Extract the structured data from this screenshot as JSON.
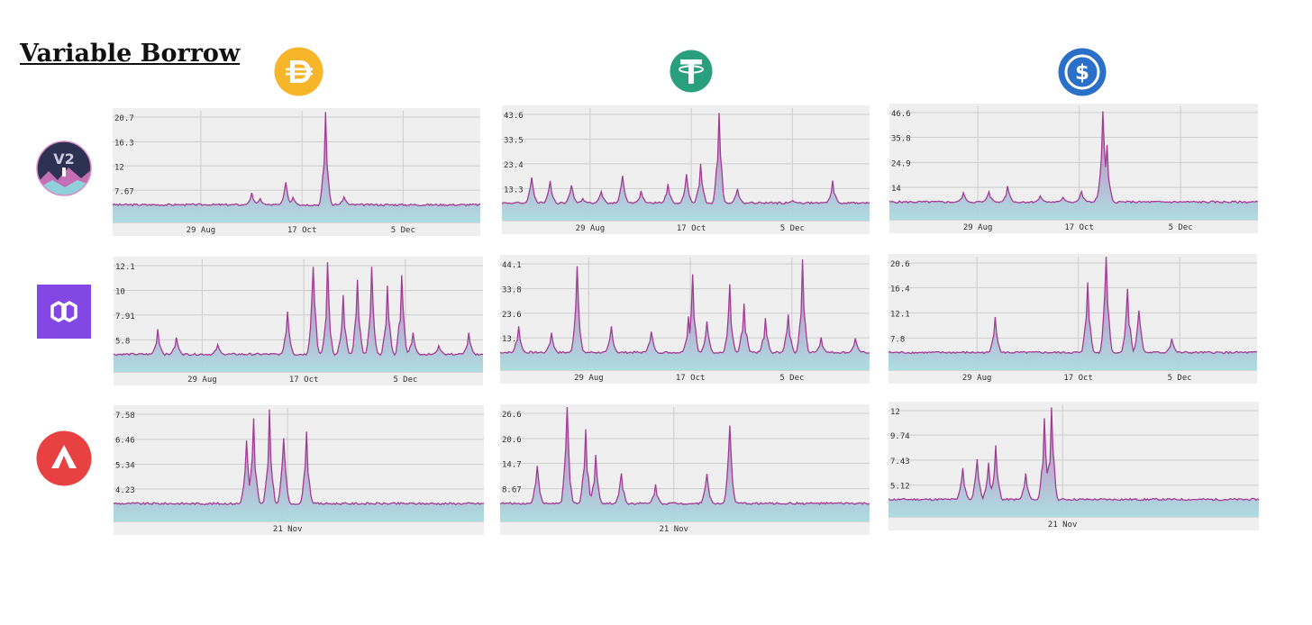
{
  "title": "Variable Borrow",
  "colors": {
    "line": "#a33b95",
    "fill_top": "#c768b6",
    "fill_bottom": "#a6dbe0",
    "grid": "#cdcdcd",
    "background": "#efefef"
  },
  "columns": [
    {
      "icon": "dai-icon",
      "color": "#f7b52a"
    },
    {
      "icon": "tether-icon",
      "color": "#2a9f7d"
    },
    {
      "icon": "usdc-icon",
      "color": "#2a70c9"
    }
  ],
  "rows": [
    {
      "icon": "aave-v2-icon"
    },
    {
      "icon": "polygon-icon",
      "color": "#8247e5"
    },
    {
      "icon": "avalanche-icon",
      "color": "#e84142"
    }
  ],
  "chart_data": [
    {
      "type": "area",
      "row": 0,
      "col": 0,
      "yticks": [
        "20.7",
        "16.3",
        "12",
        "7.67"
      ],
      "xticks": [
        "29 Aug",
        "17 Oct",
        "5 Dec"
      ],
      "peaks": [
        [
          0.19,
          3.2
        ],
        [
          0.21,
          4.1
        ],
        [
          0.25,
          3.5
        ],
        [
          0.27,
          4.5
        ],
        [
          0.38,
          7.2
        ],
        [
          0.4,
          6.2
        ],
        [
          0.47,
          9.1
        ],
        [
          0.49,
          6.4
        ],
        [
          0.58,
          21.6
        ],
        [
          0.6,
          4.8
        ],
        [
          0.63,
          6.5
        ],
        [
          0.66,
          3.2
        ]
      ]
    },
    {
      "type": "area",
      "row": 0,
      "col": 1,
      "yticks": [
        "43.6",
        "33.5",
        "23.4",
        "13.3"
      ],
      "xticks": [
        "29 Aug",
        "17 Oct",
        "5 Dec"
      ],
      "peaks": [
        [
          0.08,
          17.8
        ],
        [
          0.13,
          16.4
        ],
        [
          0.19,
          14.6
        ],
        [
          0.22,
          9.2
        ],
        [
          0.27,
          12.1
        ],
        [
          0.33,
          18.5
        ],
        [
          0.38,
          12.3
        ],
        [
          0.45,
          15.1
        ],
        [
          0.5,
          19.2
        ],
        [
          0.54,
          23.4
        ],
        [
          0.59,
          44.2
        ],
        [
          0.64,
          13.2
        ],
        [
          0.79,
          8.4
        ],
        [
          0.9,
          16.6
        ],
        [
          0.99,
          7.2
        ]
      ]
    },
    {
      "type": "area",
      "row": 0,
      "col": 2,
      "yticks": [
        "46.6",
        "35.8",
        "24.9",
        "14"
      ],
      "xticks": [
        "29 Aug",
        "17 Oct",
        "5 Dec"
      ],
      "peaks": [
        [
          0.2,
          11.7
        ],
        [
          0.27,
          12.1
        ],
        [
          0.32,
          14.6
        ],
        [
          0.41,
          10.3
        ],
        [
          0.47,
          9.7
        ],
        [
          0.52,
          12.2
        ],
        [
          0.57,
          16.1
        ],
        [
          0.58,
          47.2
        ],
        [
          0.59,
          32.5
        ],
        [
          0.65,
          6.6
        ]
      ]
    },
    {
      "type": "area",
      "row": 1,
      "col": 0,
      "yticks": [
        "12.1",
        "10",
        "7.91",
        "5.8"
      ],
      "xticks": [
        "29 Aug",
        "17 Oct",
        "5 Dec"
      ],
      "peaks": [
        [
          0.12,
          6.7
        ],
        [
          0.17,
          6.0
        ],
        [
          0.28,
          5.4
        ],
        [
          0.47,
          8.2
        ],
        [
          0.54,
          12.0
        ],
        [
          0.58,
          12.4
        ],
        [
          0.62,
          9.6
        ],
        [
          0.66,
          10.9
        ],
        [
          0.7,
          12.0
        ],
        [
          0.74,
          10.4
        ],
        [
          0.78,
          11.3
        ],
        [
          0.81,
          6.4
        ],
        [
          0.88,
          5.3
        ],
        [
          0.96,
          6.4
        ]
      ]
    },
    {
      "type": "area",
      "row": 1,
      "col": 1,
      "yticks": [
        "44.1",
        "33.8",
        "23.6",
        "13.4"
      ],
      "xticks": [
        "29 Aug",
        "17 Oct",
        "5 Dec"
      ],
      "peaks": [
        [
          0.05,
          18.2
        ],
        [
          0.14,
          15.5
        ],
        [
          0.21,
          43.1
        ],
        [
          0.3,
          18.2
        ],
        [
          0.41,
          16.0
        ],
        [
          0.51,
          22.3
        ],
        [
          0.52,
          39.8
        ],
        [
          0.56,
          20.2
        ],
        [
          0.62,
          35.7
        ],
        [
          0.66,
          27.6
        ],
        [
          0.72,
          21.6
        ],
        [
          0.78,
          23.1
        ],
        [
          0.82,
          46.0
        ],
        [
          0.87,
          13.6
        ],
        [
          0.96,
          13.2
        ]
      ]
    },
    {
      "type": "area",
      "row": 1,
      "col": 2,
      "yticks": [
        "20.6",
        "16.4",
        "12.1",
        "7.8"
      ],
      "xticks": [
        "29 Aug",
        "17 Oct",
        "5 Dec"
      ],
      "peaks": [
        [
          0.29,
          11.4
        ],
        [
          0.54,
          17.3
        ],
        [
          0.59,
          22.1
        ],
        [
          0.65,
          16.2
        ],
        [
          0.68,
          12.5
        ],
        [
          0.77,
          7.7
        ]
      ]
    },
    {
      "type": "area",
      "row": 2,
      "col": 0,
      "yticks": [
        "7.58",
        "6.46",
        "5.34",
        "4.23"
      ],
      "xticks": [
        "21 Nov"
      ],
      "peaks": [
        [
          0.36,
          6.4
        ],
        [
          0.38,
          7.4
        ],
        [
          0.42,
          7.8
        ],
        [
          0.46,
          6.5
        ],
        [
          0.52,
          6.8
        ]
      ]
    },
    {
      "type": "area",
      "row": 2,
      "col": 1,
      "yticks": [
        "26.6",
        "20.6",
        "14.7",
        "8.67"
      ],
      "xticks": [
        "21 Nov"
      ],
      "peaks": [
        [
          0.1,
          14.1
        ],
        [
          0.18,
          28.1
        ],
        [
          0.23,
          22.8
        ],
        [
          0.26,
          16.7
        ],
        [
          0.33,
          12.3
        ],
        [
          0.42,
          9.7
        ],
        [
          0.56,
          12.2
        ],
        [
          0.62,
          23.7
        ]
      ]
    },
    {
      "type": "area",
      "row": 2,
      "col": 2,
      "yticks": [
        "12",
        "9.74",
        "7.43",
        "5.12"
      ],
      "xticks": [
        "21 Nov"
      ],
      "peaks": [
        [
          0.2,
          6.7
        ],
        [
          0.24,
          7.5
        ],
        [
          0.27,
          7.2
        ],
        [
          0.29,
          8.8
        ],
        [
          0.37,
          6.2
        ],
        [
          0.42,
          11.3
        ],
        [
          0.44,
          12.3
        ]
      ]
    }
  ]
}
